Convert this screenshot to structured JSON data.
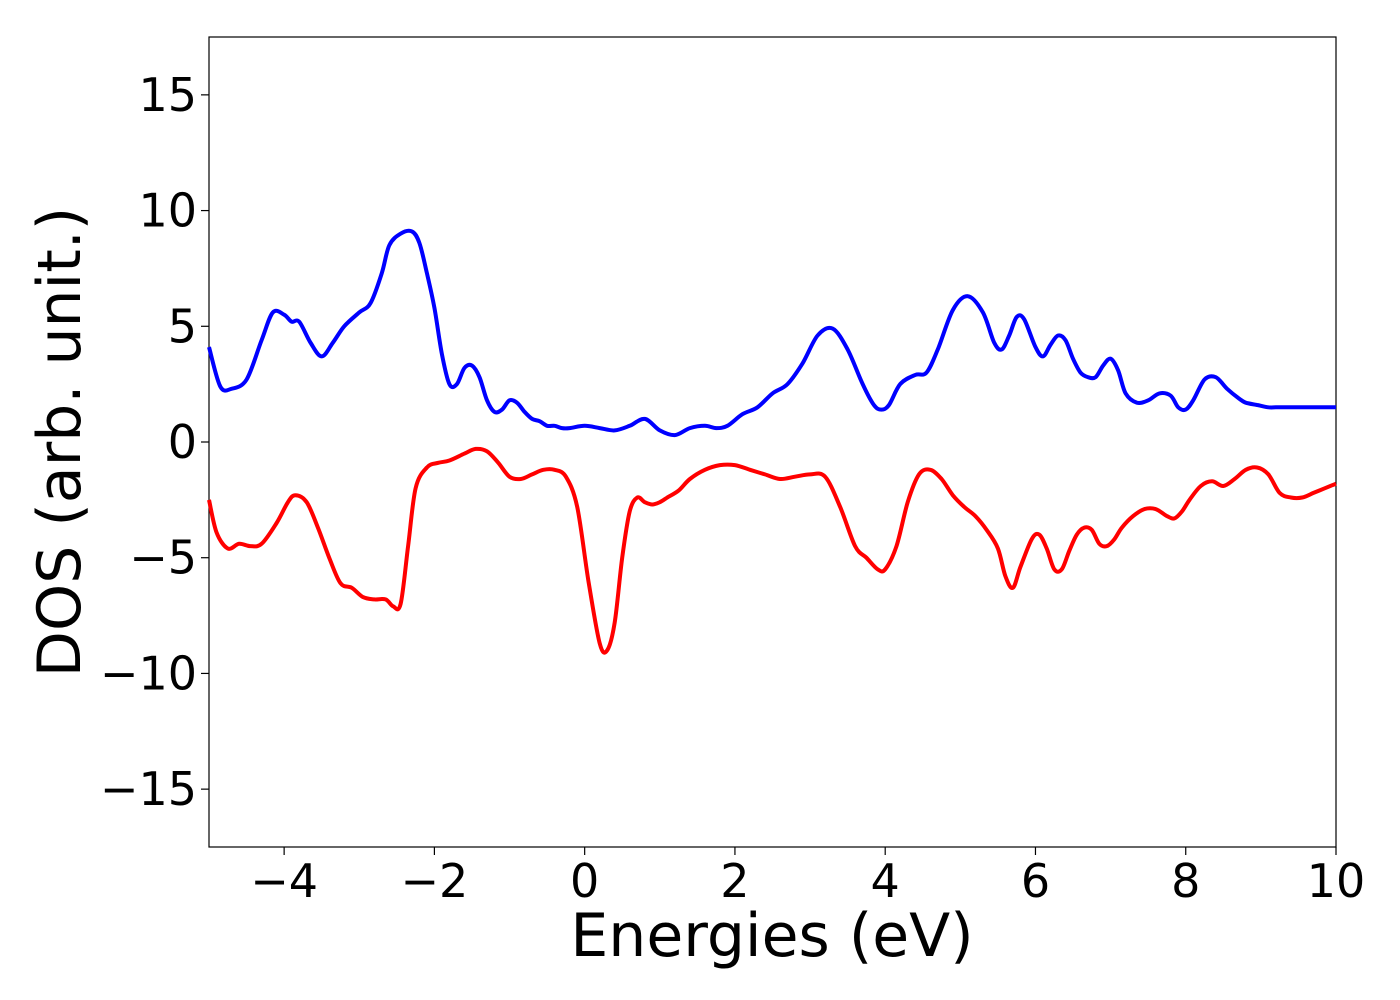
{
  "chart_data": {
    "type": "line",
    "title": "",
    "xlabel": "Energies (eV)",
    "ylabel": "DOS (arb. unit.)",
    "xlim": [
      -5,
      10
    ],
    "ylim": [
      -17.5,
      17.5
    ],
    "xticks": [
      -4,
      -2,
      0,
      2,
      4,
      6,
      8,
      10
    ],
    "xtick_labels": [
      "−4",
      "−2",
      "0",
      "2",
      "4",
      "6",
      "8",
      "10"
    ],
    "yticks": [
      15,
      10,
      5,
      0,
      -5,
      -10,
      -15
    ],
    "ytick_labels": [
      "15",
      "10",
      "5",
      "0",
      "−5",
      "−10",
      "−15"
    ],
    "grid": false,
    "series": [
      {
        "color": "#0000ff",
        "x": [
          -5.0,
          -4.85,
          -4.7,
          -4.5,
          -4.3,
          -4.15,
          -4.0,
          -3.9,
          -3.8,
          -3.65,
          -3.5,
          -3.35,
          -3.2,
          -3.0,
          -2.85,
          -2.7,
          -2.6,
          -2.45,
          -2.3,
          -2.2,
          -2.1,
          -2.0,
          -1.9,
          -1.8,
          -1.7,
          -1.6,
          -1.5,
          -1.4,
          -1.3,
          -1.2,
          -1.1,
          -1.0,
          -0.9,
          -0.8,
          -0.7,
          -0.6,
          -0.5,
          -0.4,
          -0.3,
          -0.2,
          0.0,
          0.2,
          0.4,
          0.6,
          0.8,
          1.0,
          1.2,
          1.4,
          1.6,
          1.75,
          1.9,
          2.1,
          2.3,
          2.5,
          2.7,
          2.9,
          3.1,
          3.3,
          3.5,
          3.7,
          3.85,
          3.95,
          4.05,
          4.2,
          4.4,
          4.55,
          4.7,
          4.9,
          5.1,
          5.3,
          5.45,
          5.55,
          5.65,
          5.75,
          5.85,
          6.0,
          6.1,
          6.2,
          6.3,
          6.4,
          6.5,
          6.6,
          6.7,
          6.8,
          6.9,
          7.0,
          7.1,
          7.2,
          7.35,
          7.5,
          7.65,
          7.8,
          7.9,
          8.0,
          8.1,
          8.25,
          8.4,
          8.55,
          8.7,
          8.8,
          8.95,
          9.1,
          9.2,
          9.3,
          9.45,
          9.6,
          9.8,
          10.0
        ],
        "y": [
          4.1,
          2.4,
          2.3,
          2.7,
          4.4,
          5.6,
          5.5,
          5.2,
          5.2,
          4.3,
          3.7,
          4.3,
          5.0,
          5.6,
          6.0,
          7.3,
          8.5,
          9.0,
          9.1,
          8.6,
          7.3,
          5.8,
          3.8,
          2.5,
          2.5,
          3.2,
          3.3,
          2.8,
          1.8,
          1.3,
          1.4,
          1.8,
          1.7,
          1.3,
          1.0,
          0.9,
          0.7,
          0.7,
          0.6,
          0.6,
          0.7,
          0.6,
          0.5,
          0.7,
          1.0,
          0.5,
          0.3,
          0.6,
          0.7,
          0.6,
          0.7,
          1.2,
          1.5,
          2.1,
          2.5,
          3.4,
          4.6,
          4.9,
          4.0,
          2.5,
          1.6,
          1.4,
          1.6,
          2.5,
          2.9,
          3.0,
          4.0,
          5.7,
          6.3,
          5.6,
          4.3,
          4.0,
          4.6,
          5.4,
          5.3,
          4.1,
          3.7,
          4.2,
          4.6,
          4.4,
          3.6,
          3.0,
          2.8,
          2.8,
          3.3,
          3.6,
          3.1,
          2.1,
          1.7,
          1.8,
          2.1,
          2.0,
          1.5,
          1.4,
          1.8,
          2.7,
          2.8,
          2.3,
          1.9,
          1.7,
          1.6,
          1.5,
          1.5,
          1.5,
          1.5,
          1.5,
          1.5,
          1.5
        ]
      },
      {
        "color": "#ff0000",
        "x": [
          -5.0,
          -4.9,
          -4.75,
          -4.6,
          -4.45,
          -4.3,
          -4.1,
          -3.95,
          -3.85,
          -3.7,
          -3.55,
          -3.4,
          -3.25,
          -3.1,
          -2.95,
          -2.8,
          -2.65,
          -2.55,
          -2.45,
          -2.35,
          -2.25,
          -2.1,
          -1.95,
          -1.8,
          -1.6,
          -1.45,
          -1.3,
          -1.15,
          -1.0,
          -0.85,
          -0.7,
          -0.55,
          -0.4,
          -0.25,
          -0.1,
          0.05,
          0.2,
          0.3,
          0.4,
          0.5,
          0.6,
          0.7,
          0.8,
          0.9,
          1.0,
          1.1,
          1.25,
          1.4,
          1.6,
          1.8,
          2.0,
          2.2,
          2.4,
          2.6,
          2.8,
          3.0,
          3.2,
          3.4,
          3.6,
          3.75,
          3.9,
          4.0,
          4.15,
          4.3,
          4.45,
          4.6,
          4.75,
          4.9,
          5.05,
          5.2,
          5.35,
          5.5,
          5.6,
          5.7,
          5.8,
          5.95,
          6.05,
          6.15,
          6.25,
          6.35,
          6.45,
          6.55,
          6.65,
          6.75,
          6.85,
          6.95,
          7.05,
          7.15,
          7.3,
          7.45,
          7.6,
          7.75,
          7.85,
          7.95,
          8.05,
          8.2,
          8.35,
          8.5,
          8.65,
          8.8,
          8.95,
          9.1,
          9.25,
          9.4,
          9.55,
          9.7,
          9.85,
          10.0
        ],
        "y": [
          -2.5,
          -3.9,
          -4.6,
          -4.4,
          -4.5,
          -4.4,
          -3.5,
          -2.6,
          -2.3,
          -2.6,
          -3.7,
          -5.0,
          -6.1,
          -6.3,
          -6.7,
          -6.8,
          -6.8,
          -7.1,
          -7.0,
          -4.5,
          -2.0,
          -1.1,
          -0.9,
          -0.8,
          -0.5,
          -0.3,
          -0.4,
          -0.9,
          -1.5,
          -1.6,
          -1.4,
          -1.2,
          -1.2,
          -1.5,
          -2.8,
          -6.0,
          -8.7,
          -9.0,
          -7.8,
          -5.0,
          -3.0,
          -2.4,
          -2.6,
          -2.7,
          -2.6,
          -2.4,
          -2.1,
          -1.6,
          -1.2,
          -1.0,
          -1.0,
          -1.2,
          -1.4,
          -1.6,
          -1.5,
          -1.4,
          -1.5,
          -2.8,
          -4.5,
          -5.0,
          -5.5,
          -5.5,
          -4.5,
          -2.6,
          -1.4,
          -1.2,
          -1.6,
          -2.3,
          -2.8,
          -3.2,
          -3.8,
          -4.6,
          -5.8,
          -6.3,
          -5.4,
          -4.2,
          -4.0,
          -4.6,
          -5.5,
          -5.5,
          -4.7,
          -4.0,
          -3.7,
          -3.8,
          -4.4,
          -4.5,
          -4.2,
          -3.7,
          -3.2,
          -2.9,
          -2.9,
          -3.2,
          -3.3,
          -3.0,
          -2.5,
          -1.9,
          -1.7,
          -1.9,
          -1.6,
          -1.2,
          -1.1,
          -1.4,
          -2.2,
          -2.4,
          -2.4,
          -2.2,
          -2.0,
          -1.8
        ]
      }
    ]
  }
}
